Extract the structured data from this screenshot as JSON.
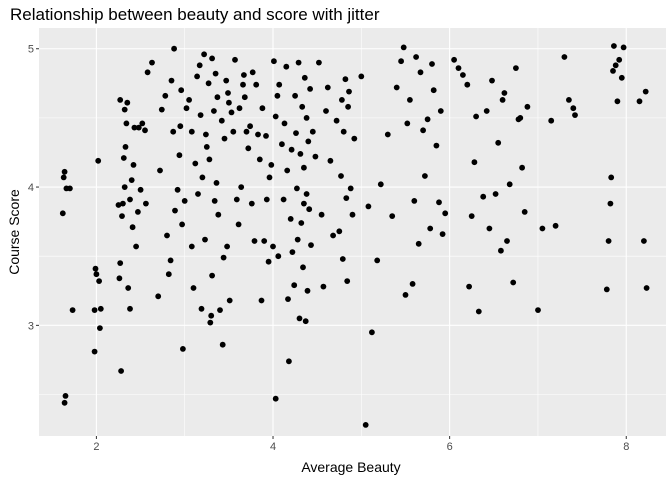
{
  "chart_data": {
    "type": "scatter",
    "title": "Relationship between beauty and score with jitter",
    "xlabel": "Average Beauty",
    "ylabel": "Course Score",
    "xlim": [
      1.35,
      8.45
    ],
    "ylim": [
      2.2,
      5.15
    ],
    "xticks": [
      2,
      4,
      6,
      8
    ],
    "yticks": [
      3,
      4,
      5
    ],
    "xminor": [
      3,
      5,
      7
    ],
    "yminor": [
      2.5,
      3.5,
      4.5
    ],
    "grid": true,
    "point_color": "#000000",
    "panel_color": "#ebebeb",
    "points": [
      [
        1.62,
        3.81
      ],
      [
        1.63,
        4.07
      ],
      [
        1.64,
        4.11
      ],
      [
        1.66,
        3.99
      ],
      [
        1.7,
        3.99
      ],
      [
        1.65,
        2.49
      ],
      [
        1.64,
        2.44
      ],
      [
        1.73,
        3.11
      ],
      [
        1.98,
        3.11
      ],
      [
        1.99,
        3.41
      ],
      [
        1.98,
        2.81
      ],
      [
        2.02,
        4.19
      ],
      [
        2.03,
        3.32
      ],
      [
        2.05,
        3.12
      ],
      [
        2.04,
        2.98
      ],
      [
        2.0,
        3.37
      ],
      [
        2.25,
        3.87
      ],
      [
        2.27,
        3.45
      ],
      [
        2.26,
        3.34
      ],
      [
        2.28,
        2.67
      ],
      [
        2.27,
        4.63
      ],
      [
        2.29,
        3.79
      ],
      [
        2.3,
        3.88
      ],
      [
        2.32,
        4.0
      ],
      [
        2.31,
        4.21
      ],
      [
        2.33,
        4.29
      ],
      [
        2.34,
        4.46
      ],
      [
        2.35,
        4.61
      ],
      [
        2.36,
        3.27
      ],
      [
        2.38,
        3.12
      ],
      [
        2.38,
        3.91
      ],
      [
        2.4,
        4.05
      ],
      [
        2.32,
        4.56
      ],
      [
        2.41,
        3.71
      ],
      [
        2.42,
        4.16
      ],
      [
        2.43,
        4.43
      ],
      [
        2.45,
        3.57
      ],
      [
        2.47,
        3.82
      ],
      [
        2.48,
        4.43
      ],
      [
        2.5,
        3.98
      ],
      [
        2.52,
        4.46
      ],
      [
        2.55,
        4.41
      ],
      [
        2.58,
        4.83
      ],
      [
        2.56,
        3.88
      ],
      [
        2.63,
        4.9
      ],
      [
        2.7,
        3.21
      ],
      [
        2.72,
        4.12
      ],
      [
        2.74,
        4.56
      ],
      [
        2.78,
        4.66
      ],
      [
        2.8,
        3.65
      ],
      [
        2.82,
        3.37
      ],
      [
        2.84,
        3.47
      ],
      [
        2.85,
        4.77
      ],
      [
        2.87,
        4.4
      ],
      [
        2.88,
        5.0
      ],
      [
        2.89,
        3.83
      ],
      [
        2.92,
        3.98
      ],
      [
        2.94,
        4.23
      ],
      [
        2.95,
        4.44
      ],
      [
        2.96,
        4.7
      ],
      [
        2.97,
        3.73
      ],
      [
        2.98,
        2.83
      ],
      [
        3.0,
        3.9
      ],
      [
        3.02,
        4.57
      ],
      [
        3.05,
        4.63
      ],
      [
        3.08,
        4.4
      ],
      [
        3.08,
        3.57
      ],
      [
        3.1,
        3.27
      ],
      [
        3.12,
        4.17
      ],
      [
        3.14,
        4.8
      ],
      [
        3.15,
        3.95
      ],
      [
        3.17,
        4.88
      ],
      [
        3.18,
        4.52
      ],
      [
        3.19,
        3.12
      ],
      [
        3.2,
        4.07
      ],
      [
        3.22,
        4.96
      ],
      [
        3.23,
        3.62
      ],
      [
        3.24,
        4.38
      ],
      [
        3.25,
        4.29
      ],
      [
        3.27,
        4.75
      ],
      [
        3.28,
        4.2
      ],
      [
        3.29,
        3.02
      ],
      [
        3.3,
        3.07
      ],
      [
        3.31,
        4.93
      ],
      [
        3.31,
        3.36
      ],
      [
        3.33,
        4.55
      ],
      [
        3.34,
        3.9
      ],
      [
        3.35,
        4.82
      ],
      [
        3.36,
        4.03
      ],
      [
        3.37,
        4.65
      ],
      [
        3.38,
        3.8
      ],
      [
        3.4,
        3.11
      ],
      [
        3.42,
        4.48
      ],
      [
        3.43,
        2.86
      ],
      [
        3.44,
        3.49
      ],
      [
        3.45,
        4.35
      ],
      [
        3.47,
        4.77
      ],
      [
        3.48,
        3.57
      ],
      [
        3.49,
        4.68
      ],
      [
        3.5,
        4.61
      ],
      [
        3.51,
        3.18
      ],
      [
        3.53,
        4.54
      ],
      [
        3.55,
        4.4
      ],
      [
        3.57,
        4.92
      ],
      [
        3.59,
        3.91
      ],
      [
        3.61,
        3.73
      ],
      [
        3.62,
        4.57
      ],
      [
        3.64,
        4.0
      ],
      [
        3.66,
        4.74
      ],
      [
        3.67,
        4.81
      ],
      [
        3.68,
        4.65
      ],
      [
        3.7,
        4.4
      ],
      [
        3.72,
        4.28
      ],
      [
        3.74,
        4.44
      ],
      [
        3.76,
        3.88
      ],
      [
        3.77,
        4.83
      ],
      [
        3.79,
        3.61
      ],
      [
        3.81,
        4.74
      ],
      [
        3.83,
        4.38
      ],
      [
        3.85,
        4.2
      ],
      [
        3.87,
        3.18
      ],
      [
        3.88,
        4.57
      ],
      [
        3.9,
        3.61
      ],
      [
        3.92,
        4.37
      ],
      [
        3.93,
        3.91
      ],
      [
        3.95,
        3.46
      ],
      [
        3.96,
        4.07
      ],
      [
        3.98,
        4.16
      ],
      [
        4.0,
        3.57
      ],
      [
        4.01,
        4.91
      ],
      [
        4.03,
        2.47
      ],
      [
        4.03,
        4.51
      ],
      [
        4.05,
        4.66
      ],
      [
        4.06,
        3.5
      ],
      [
        4.07,
        4.74
      ],
      [
        4.1,
        4.31
      ],
      [
        4.12,
        3.91
      ],
      [
        4.13,
        4.46
      ],
      [
        4.15,
        4.87
      ],
      [
        4.16,
        4.12
      ],
      [
        4.17,
        3.19
      ],
      [
        4.18,
        2.74
      ],
      [
        4.2,
        3.77
      ],
      [
        4.21,
        4.27
      ],
      [
        4.22,
        3.53
      ],
      [
        4.24,
        3.29
      ],
      [
        4.25,
        4.66
      ],
      [
        4.26,
        4.39
      ],
      [
        4.27,
        3.99
      ],
      [
        4.28,
        3.62
      ],
      [
        4.29,
        4.9
      ],
      [
        4.3,
        3.05
      ],
      [
        4.31,
        4.24
      ],
      [
        4.32,
        3.74
      ],
      [
        4.33,
        4.58
      ],
      [
        4.34,
        3.42
      ],
      [
        4.35,
        4.14
      ],
      [
        4.35,
        3.88
      ],
      [
        4.36,
        4.79
      ],
      [
        4.37,
        3.03
      ],
      [
        4.38,
        4.5
      ],
      [
        4.38,
        3.95
      ],
      [
        4.39,
        3.25
      ],
      [
        4.4,
        4.33
      ],
      [
        4.41,
        3.84
      ],
      [
        4.42,
        4.71
      ],
      [
        4.43,
        3.58
      ],
      [
        4.45,
        4.4
      ],
      [
        4.48,
        4.22
      ],
      [
        4.52,
        4.9
      ],
      [
        4.55,
        3.8
      ],
      [
        4.57,
        3.28
      ],
      [
        4.6,
        4.55
      ],
      [
        4.62,
        4.72
      ],
      [
        4.65,
        4.19
      ],
      [
        4.68,
        3.65
      ],
      [
        4.72,
        4.48
      ],
      [
        4.75,
        3.68
      ],
      [
        4.77,
        4.08
      ],
      [
        4.78,
        4.63
      ],
      [
        4.79,
        3.48
      ],
      [
        4.8,
        4.4
      ],
      [
        4.82,
        4.78
      ],
      [
        4.83,
        3.92
      ],
      [
        4.84,
        3.32
      ],
      [
        4.85,
        4.58
      ],
      [
        4.86,
        4.69
      ],
      [
        4.88,
        3.99
      ],
      [
        4.9,
        3.8
      ],
      [
        4.92,
        4.35
      ],
      [
        5.0,
        4.8
      ],
      [
        5.05,
        2.28
      ],
      [
        5.08,
        3.86
      ],
      [
        5.12,
        2.95
      ],
      [
        5.18,
        3.47
      ],
      [
        5.22,
        4.02
      ],
      [
        5.3,
        4.38
      ],
      [
        5.35,
        3.79
      ],
      [
        5.4,
        4.72
      ],
      [
        5.45,
        4.91
      ],
      [
        5.48,
        5.01
      ],
      [
        5.5,
        3.22
      ],
      [
        5.52,
        4.46
      ],
      [
        5.55,
        4.63
      ],
      [
        5.58,
        3.3
      ],
      [
        5.6,
        3.9
      ],
      [
        5.62,
        4.94
      ],
      [
        5.65,
        3.59
      ],
      [
        5.67,
        4.83
      ],
      [
        5.7,
        4.41
      ],
      [
        5.72,
        4.08
      ],
      [
        5.75,
        4.49
      ],
      [
        5.78,
        3.7
      ],
      [
        5.8,
        4.89
      ],
      [
        5.82,
        4.7
      ],
      [
        5.85,
        4.3
      ],
      [
        5.88,
        3.89
      ],
      [
        5.9,
        4.55
      ],
      [
        5.92,
        3.66
      ],
      [
        5.95,
        3.81
      ],
      [
        6.05,
        4.92
      ],
      [
        6.1,
        4.86
      ],
      [
        6.15,
        4.81
      ],
      [
        6.2,
        4.74
      ],
      [
        6.22,
        3.28
      ],
      [
        6.25,
        3.79
      ],
      [
        6.28,
        4.18
      ],
      [
        6.3,
        4.51
      ],
      [
        6.33,
        3.1
      ],
      [
        6.38,
        3.93
      ],
      [
        6.42,
        4.55
      ],
      [
        6.45,
        3.7
      ],
      [
        6.48,
        4.77
      ],
      [
        6.52,
        3.95
      ],
      [
        6.55,
        4.32
      ],
      [
        6.58,
        3.54
      ],
      [
        6.6,
        4.63
      ],
      [
        6.62,
        4.68
      ],
      [
        6.65,
        3.61
      ],
      [
        6.68,
        4.02
      ],
      [
        6.72,
        3.31
      ],
      [
        6.75,
        4.86
      ],
      [
        6.78,
        4.49
      ],
      [
        6.8,
        4.5
      ],
      [
        6.82,
        4.14
      ],
      [
        6.85,
        3.82
      ],
      [
        6.88,
        4.58
      ],
      [
        7.0,
        3.11
      ],
      [
        7.05,
        3.7
      ],
      [
        7.15,
        4.48
      ],
      [
        7.2,
        3.72
      ],
      [
        7.3,
        4.94
      ],
      [
        7.35,
        4.63
      ],
      [
        7.4,
        4.57
      ],
      [
        7.42,
        4.52
      ],
      [
        7.78,
        3.26
      ],
      [
        7.8,
        3.61
      ],
      [
        7.82,
        3.88
      ],
      [
        7.83,
        4.07
      ],
      [
        7.85,
        4.84
      ],
      [
        7.86,
        5.02
      ],
      [
        7.88,
        4.88
      ],
      [
        7.9,
        4.62
      ],
      [
        7.92,
        4.92
      ],
      [
        7.95,
        4.79
      ],
      [
        7.97,
        5.01
      ],
      [
        8.15,
        4.62
      ],
      [
        8.2,
        3.61
      ],
      [
        8.22,
        4.69
      ],
      [
        8.23,
        3.27
      ]
    ]
  }
}
